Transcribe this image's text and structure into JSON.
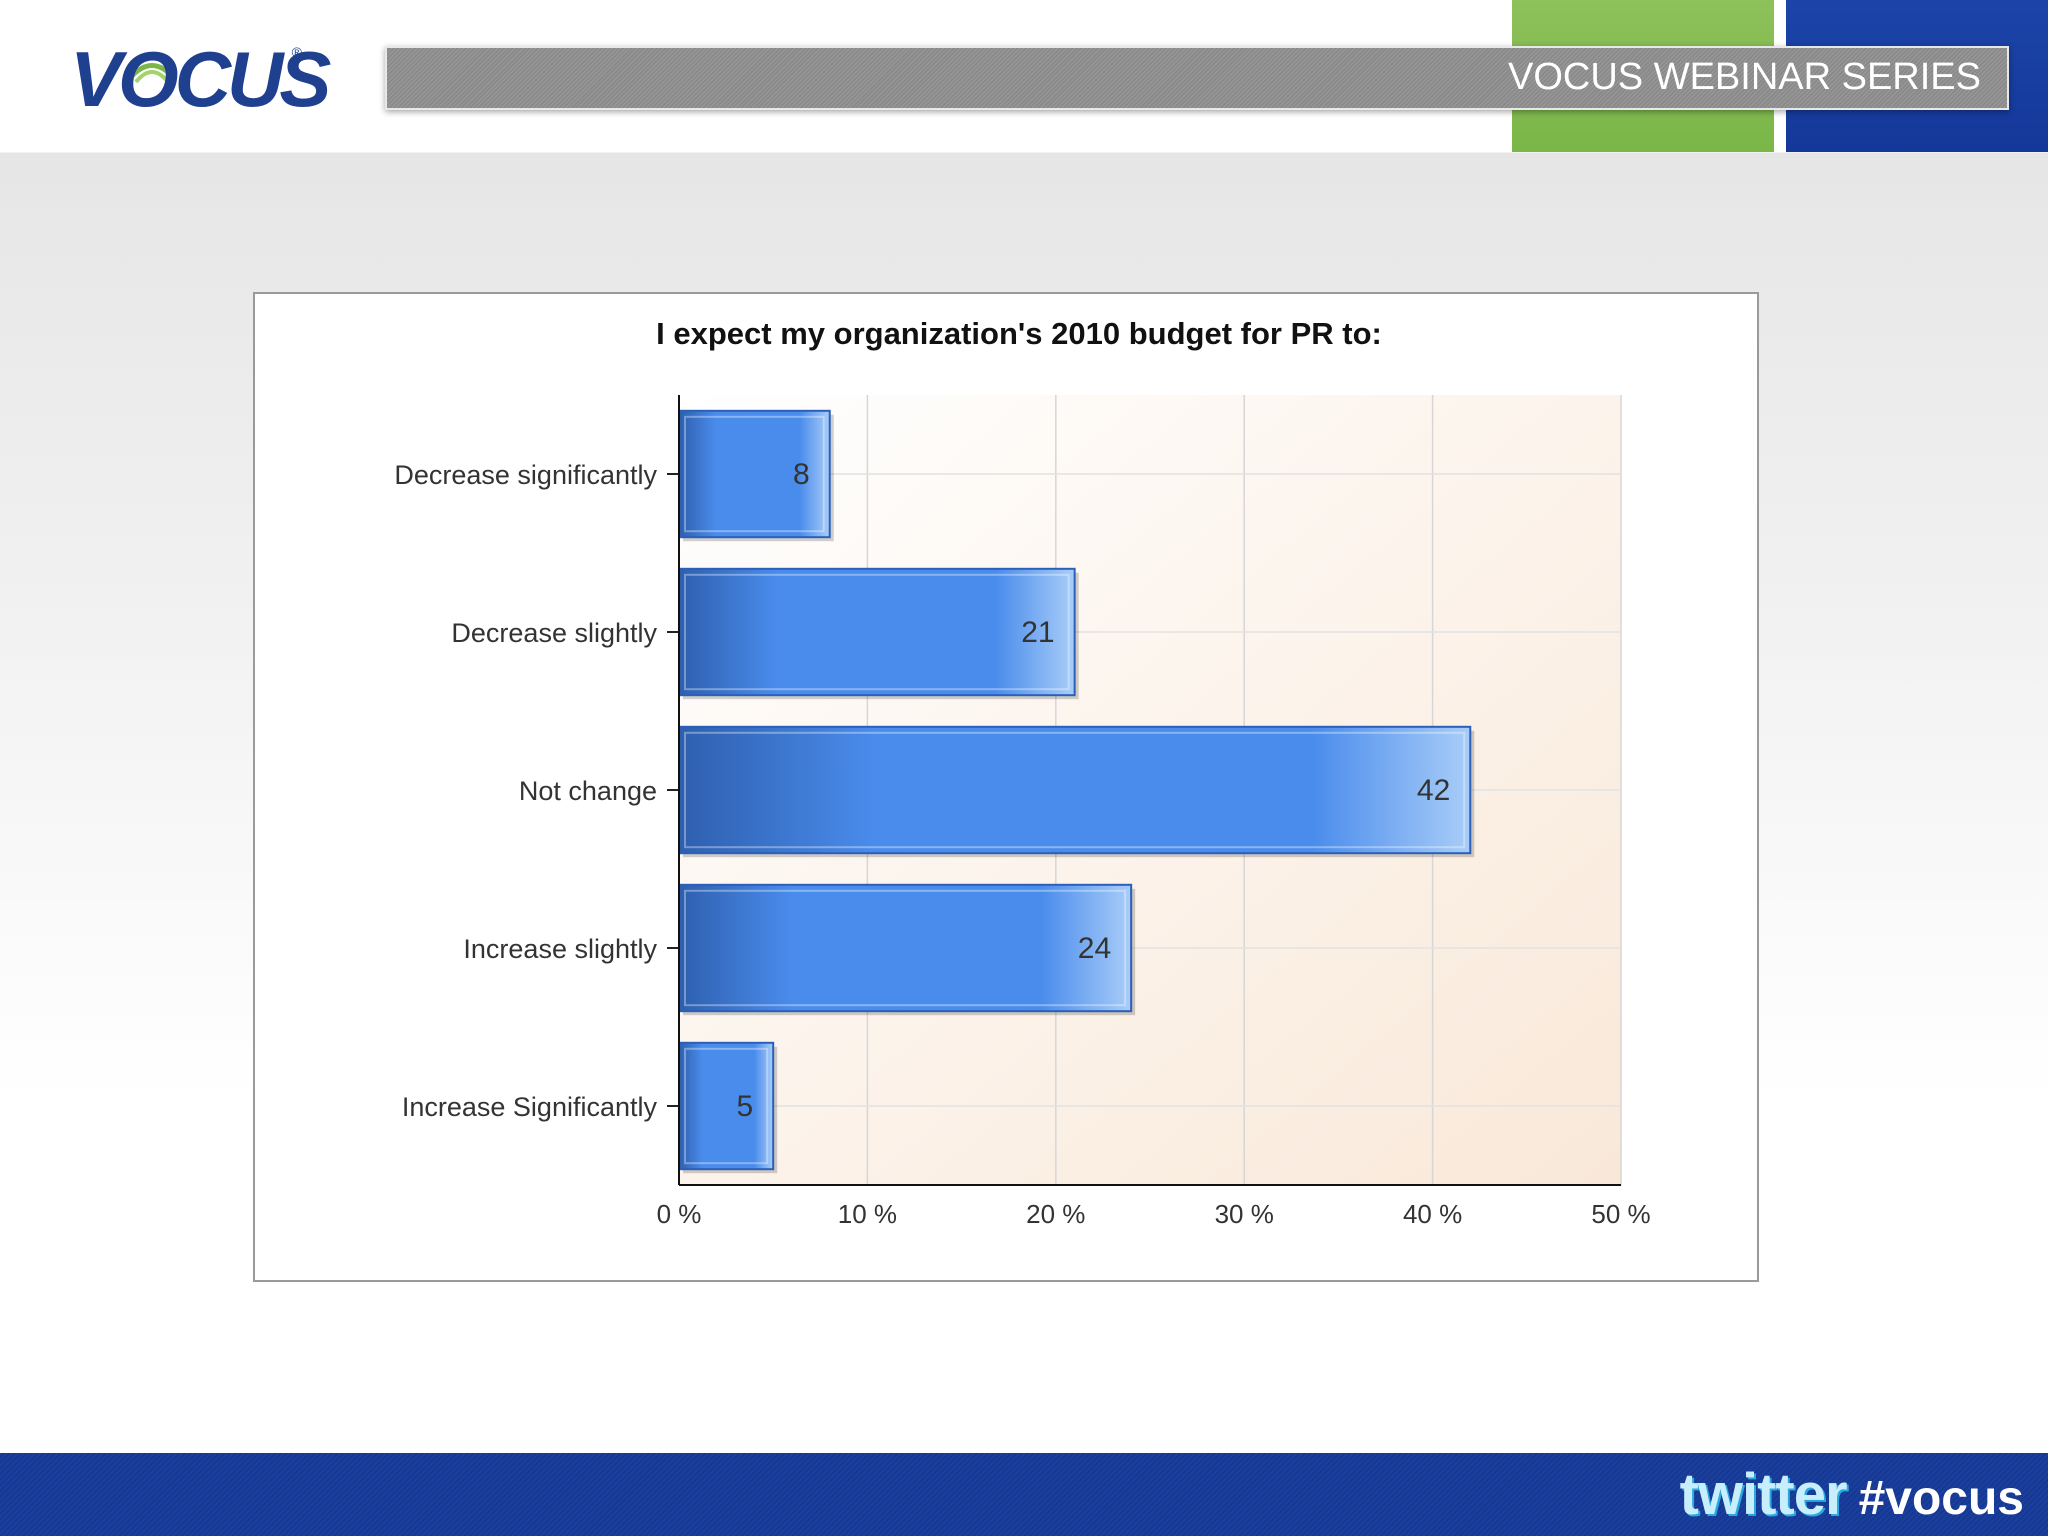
{
  "header": {
    "logo_text": "VOCUS",
    "logo_mark": "®",
    "banner_title": "VOCUS WEBINAR SERIES",
    "colors": {
      "green": "#7ab648",
      "blue": "#14389a"
    }
  },
  "footer": {
    "twitter_label": "twitter",
    "hashtag": "#vocus",
    "color": "#163892"
  },
  "chart_data": {
    "type": "bar",
    "orientation": "horizontal",
    "title": "I expect my organization's 2010 budget for PR to:",
    "categories": [
      "Decrease significantly",
      "Decrease slightly",
      "Not change",
      "Increase slightly",
      "Increase Significantly"
    ],
    "values": [
      8,
      21,
      42,
      24,
      5
    ],
    "data_labels": [
      "8",
      "21",
      "42",
      "24",
      "5"
    ],
    "xlim": [
      0,
      50
    ],
    "x_ticks": [
      0,
      10,
      20,
      30,
      40,
      50
    ],
    "x_tick_labels": [
      "0 %",
      "10 %",
      "20 %",
      "30 %",
      "40 %",
      "50 %"
    ],
    "xlabel": "",
    "ylabel": "",
    "grid": true,
    "bar_color": "#4a8cec"
  }
}
